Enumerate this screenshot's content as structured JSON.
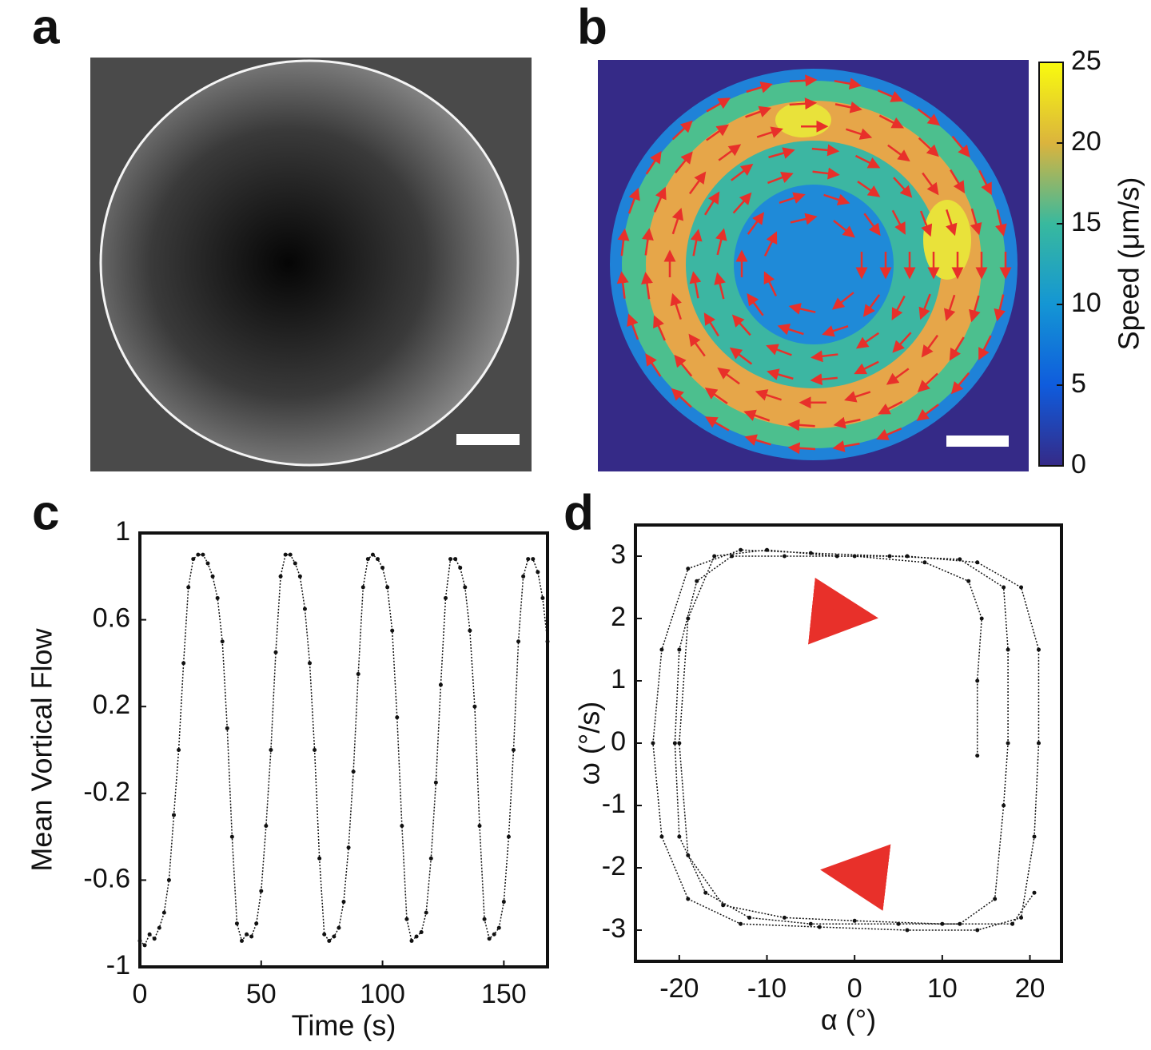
{
  "chart_data": [
    {
      "type": "image",
      "panel_label": "a"
    },
    {
      "type": "heatmap",
      "panel_label": "b",
      "colorbar_label": "Speed (μm/s)",
      "clim": [
        0,
        25
      ],
      "cticks": [
        0,
        5,
        10,
        15,
        20,
        25
      ]
    },
    {
      "type": "line",
      "panel_label": "c",
      "x_label": "Time (s)",
      "y_label": "Mean Vortical Flow",
      "color": "#111111",
      "x": [
        0,
        2,
        4,
        6,
        8,
        10,
        12,
        14,
        16,
        18,
        20,
        22,
        24,
        26,
        28,
        30,
        32,
        34,
        36,
        38,
        40,
        42,
        44,
        46,
        48,
        50,
        52,
        54,
        56,
        58,
        60,
        62,
        64,
        66,
        68,
        70,
        72,
        74,
        76,
        78,
        80,
        82,
        84,
        86,
        88,
        90,
        92,
        94,
        96,
        98,
        100,
        102,
        104,
        106,
        108,
        110,
        112,
        114,
        116,
        118,
        120,
        122,
        124,
        126,
        128,
        130,
        132,
        134,
        136,
        138,
        140,
        142,
        144,
        146,
        148,
        150,
        152,
        154,
        156,
        158,
        160,
        162,
        164,
        166,
        168
      ],
      "values": [
        -0.88,
        -0.9,
        -0.85,
        -0.87,
        -0.82,
        -0.75,
        -0.6,
        -0.3,
        0.0,
        0.4,
        0.75,
        0.88,
        0.9,
        0.9,
        0.86,
        0.8,
        0.7,
        0.5,
        0.1,
        -0.4,
        -0.8,
        -0.88,
        -0.85,
        -0.86,
        -0.8,
        -0.65,
        -0.35,
        0.0,
        0.45,
        0.8,
        0.9,
        0.9,
        0.86,
        0.8,
        0.65,
        0.4,
        0.0,
        -0.5,
        -0.85,
        -0.88,
        -0.86,
        -0.82,
        -0.7,
        -0.45,
        -0.1,
        0.35,
        0.75,
        0.88,
        0.9,
        0.88,
        0.84,
        0.75,
        0.55,
        0.15,
        -0.35,
        -0.78,
        -0.88,
        -0.86,
        -0.84,
        -0.75,
        -0.5,
        -0.15,
        0.3,
        0.7,
        0.88,
        0.88,
        0.84,
        0.75,
        0.55,
        0.2,
        -0.35,
        -0.78,
        -0.87,
        -0.85,
        -0.82,
        -0.7,
        -0.4,
        0.0,
        0.5,
        0.8,
        0.88,
        0.88,
        0.82,
        0.7,
        0.5
      ],
      "xlim": [
        0,
        168
      ],
      "xticks": [
        0,
        50,
        100,
        150
      ],
      "ylim": [
        -1,
        1
      ],
      "yticks": [
        -1,
        -0.6,
        -0.2,
        0.2,
        0.6,
        1
      ]
    },
    {
      "type": "scatter",
      "panel_label": "d",
      "x_label": "α (°)",
      "y_label": "ω (°/s)",
      "color": "#111111",
      "x": [
        14,
        14,
        14.5,
        13,
        8,
        0,
        -8,
        -14,
        -18,
        -20,
        -20.5,
        -20,
        -17,
        -12,
        -5,
        5,
        12,
        16,
        17,
        17.5,
        17.5,
        17,
        12,
        4,
        -5,
        -13,
        -19,
        -22,
        -23,
        -22,
        -19,
        -13,
        -4,
        6,
        14,
        19,
        20.5,
        21,
        21,
        19,
        14,
        6,
        -2,
        -10,
        -16,
        -19,
        -20,
        -19,
        -15,
        -8,
        0,
        10,
        18,
        20.5
      ],
      "values": [
        -0.2,
        1,
        2,
        2.6,
        2.9,
        3.0,
        3.0,
        3.0,
        2.6,
        1.5,
        0,
        -1.5,
        -2.4,
        -2.8,
        -2.9,
        -2.9,
        -2.9,
        -2.5,
        -1,
        0,
        1.5,
        2.5,
        2.95,
        3.0,
        3.05,
        3.1,
        2.8,
        1.5,
        0,
        -1.5,
        -2.5,
        -2.9,
        -2.95,
        -3.0,
        -3.0,
        -2.8,
        -1.5,
        0,
        1.5,
        2.5,
        2.9,
        3.0,
        3.0,
        3.1,
        3.0,
        2.0,
        0,
        -1.8,
        -2.6,
        -2.8,
        -2.85,
        -2.9,
        -2.9,
        -2.4
      ],
      "xlim": [
        -25,
        23.6
      ],
      "xticks": [
        -20,
        -10,
        0,
        10,
        20
      ],
      "ylim": [
        -3.5,
        3.5
      ],
      "yticks": [
        -3,
        -2,
        -1,
        0,
        1,
        2,
        3
      ]
    }
  ]
}
